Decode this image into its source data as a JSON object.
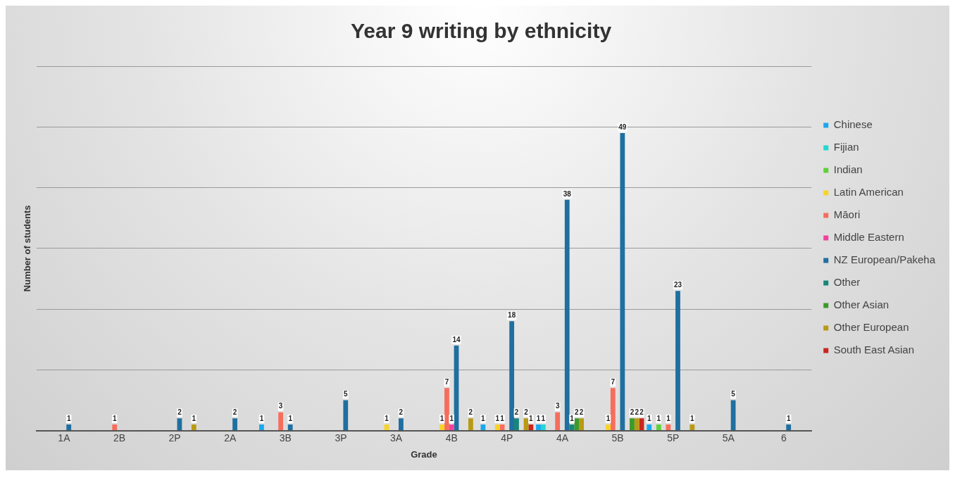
{
  "chart_data": {
    "type": "bar",
    "title": "Year 9 writing by ethnicity",
    "xlabel": "Grade",
    "ylabel": "Number of students",
    "categories": [
      "1A",
      "2B",
      "2P",
      "2A",
      "3B",
      "3P",
      "3A",
      "4B",
      "4P",
      "4A",
      "5B",
      "5P",
      "5A",
      "6"
    ],
    "series": [
      {
        "name": "Chinese",
        "color": "#1aa7f0",
        "values": [
          null,
          null,
          null,
          null,
          1,
          null,
          null,
          null,
          1,
          1,
          null,
          1,
          null,
          null
        ]
      },
      {
        "name": "Fijian",
        "color": "#20d8d0",
        "values": [
          null,
          null,
          null,
          null,
          null,
          null,
          null,
          null,
          null,
          1,
          null,
          null,
          null,
          null
        ]
      },
      {
        "name": "Indian",
        "color": "#5ed23a",
        "values": [
          null,
          null,
          null,
          null,
          null,
          null,
          null,
          null,
          null,
          null,
          null,
          1,
          null,
          null
        ]
      },
      {
        "name": "Latin American",
        "color": "#f7d32a",
        "values": [
          null,
          null,
          null,
          null,
          null,
          null,
          1,
          1,
          1,
          null,
          1,
          null,
          null,
          null
        ]
      },
      {
        "name": "Māori",
        "color": "#f76d5c",
        "values": [
          null,
          1,
          null,
          null,
          3,
          null,
          null,
          7,
          1,
          3,
          7,
          1,
          null,
          null
        ]
      },
      {
        "name": "Middle Eastern",
        "color": "#f53f9e",
        "values": [
          null,
          null,
          null,
          null,
          null,
          null,
          null,
          1,
          null,
          null,
          null,
          null,
          null,
          null
        ]
      },
      {
        "name": "NZ European/Pakeha",
        "color": "#1f6fa0",
        "values": [
          1,
          null,
          2,
          2,
          1,
          5,
          2,
          14,
          18,
          38,
          49,
          23,
          5,
          1
        ]
      },
      {
        "name": "Other",
        "color": "#17867a",
        "values": [
          null,
          null,
          null,
          null,
          null,
          null,
          null,
          null,
          2,
          1,
          null,
          null,
          null,
          null
        ]
      },
      {
        "name": "Other Asian",
        "color": "#3c9a2a",
        "values": [
          null,
          null,
          null,
          null,
          null,
          null,
          null,
          null,
          null,
          2,
          2,
          null,
          null,
          null
        ]
      },
      {
        "name": "Other European",
        "color": "#b89a14",
        "values": [
          null,
          null,
          1,
          null,
          null,
          null,
          null,
          2,
          2,
          2,
          2,
          1,
          null,
          null
        ]
      },
      {
        "name": "South East Asian",
        "color": "#c8261e",
        "values": [
          null,
          null,
          null,
          null,
          null,
          null,
          null,
          null,
          1,
          null,
          2,
          null,
          null,
          null
        ]
      }
    ],
    "ylim": [
      0,
      60
    ],
    "yticks": [
      {
        "value": 0,
        "label": null
      },
      {
        "value": 10,
        "label": null
      },
      {
        "value": 20,
        "label": null
      },
      {
        "value": 30,
        "label": null
      },
      {
        "value": 40,
        "label": null
      },
      {
        "value": 50,
        "label": null
      },
      {
        "value": 60,
        "label": null
      }
    ],
    "tick_labels": "x",
    "grid": "y",
    "legend": "right",
    "data_labels": true
  }
}
